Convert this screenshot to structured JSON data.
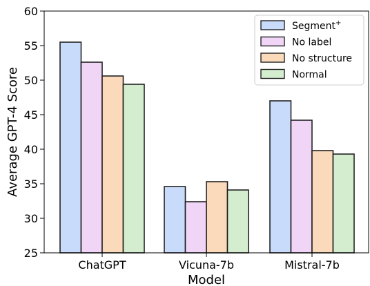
{
  "chart_data": {
    "type": "bar",
    "xlabel": "Model",
    "ylabel": "Average GPT-4 Score",
    "categories": [
      "ChatGPT",
      "Vicuna-7b",
      "Mistral-7b"
    ],
    "ylim": [
      25,
      60
    ],
    "yticks": [
      "25",
      "30",
      "35",
      "40",
      "45",
      "50",
      "55",
      "60"
    ],
    "grid": false,
    "legend_position": "top-right",
    "series": [
      {
        "name": "Segment",
        "name_sup": "+",
        "color": "#c9dbfb",
        "values": [
          55.5,
          34.6,
          47.0
        ]
      },
      {
        "name": "No label",
        "color": "#f1d5f7",
        "values": [
          52.6,
          32.4,
          44.2
        ]
      },
      {
        "name": "No structure",
        "color": "#fadabb",
        "values": [
          50.6,
          35.3,
          39.8
        ]
      },
      {
        "name": "Normal",
        "color": "#d5edcf",
        "values": [
          49.4,
          34.1,
          39.3
        ]
      }
    ]
  }
}
